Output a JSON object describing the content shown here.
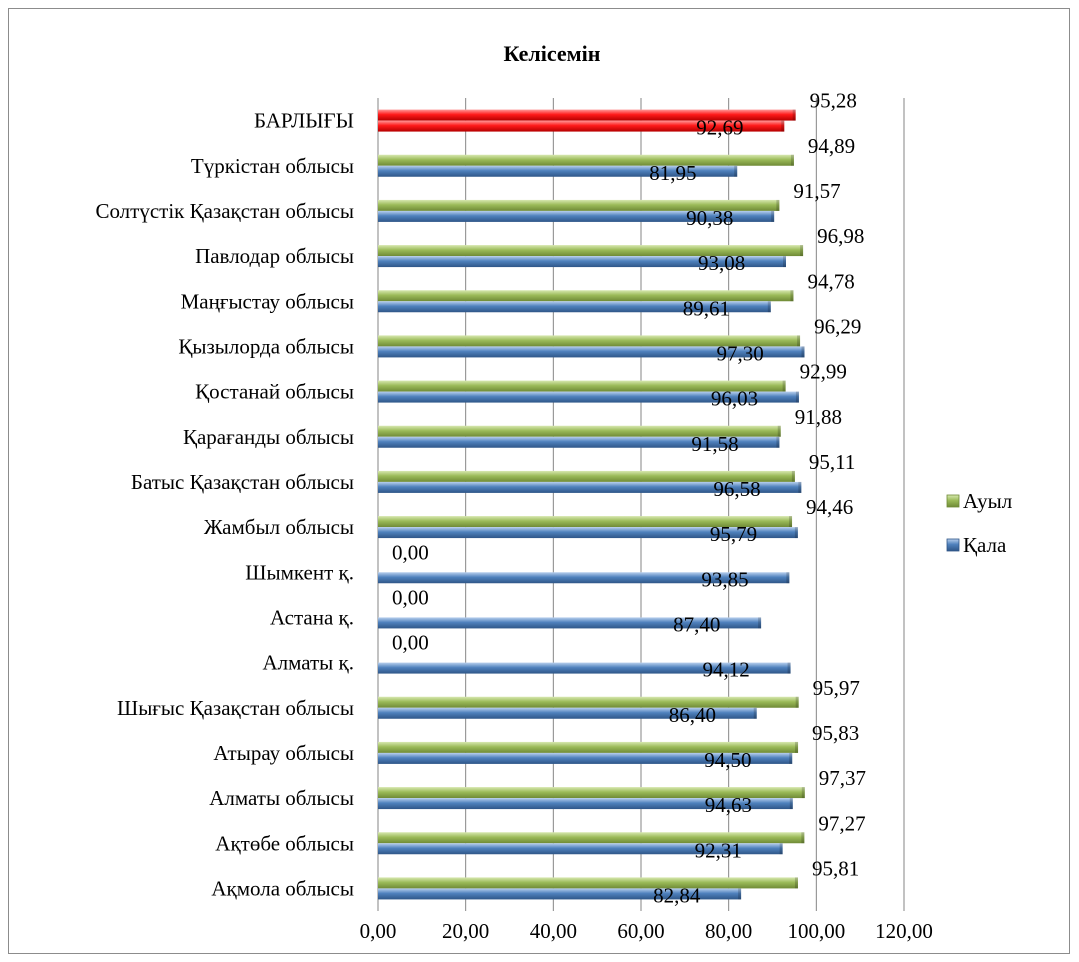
{
  "chart_data": {
    "type": "bar",
    "orientation": "horizontal",
    "title": "Келісемін",
    "categories": [
      "БАРЛЫҒЫ",
      "Түркістан облысы",
      "Солтүстік Қазақстан облысы",
      "Павлодар облысы",
      "Маңғыстау облысы",
      "Қызылорда облысы",
      "Қостанай облысы",
      "Қарағанды облысы",
      "Батыс Қазақстан облысы",
      "Жамбыл облысы",
      "Шымкент қ.",
      "Астана қ.",
      "Алматы қ.",
      "Шығыс Қазақстан облысы",
      "Атырау облысы",
      "Алматы облысы",
      "Ақтөбе облысы",
      "Ақмола облысы"
    ],
    "series": [
      {
        "name": "Ауыл",
        "color": "#9bbb59",
        "values": [
          95.28,
          94.89,
          91.57,
          96.98,
          94.78,
          96.29,
          92.99,
          91.88,
          95.11,
          94.46,
          0,
          0,
          0,
          95.97,
          95.83,
          97.37,
          97.27,
          95.81
        ],
        "labels": [
          "95,28",
          "94,89",
          "91,57",
          "96,98",
          "94,78",
          "96,29",
          "92,99",
          "91,88",
          "95,11",
          "94,46",
          "0,00",
          "0,00",
          "0,00",
          "95,97",
          "95,83",
          "97,37",
          "97,27",
          "95,81"
        ]
      },
      {
        "name": "Қала",
        "color": "#4f81bd",
        "values": [
          92.69,
          81.95,
          90.38,
          93.08,
          89.61,
          97.3,
          96.03,
          91.58,
          96.58,
          95.79,
          93.85,
          87.4,
          94.12,
          86.4,
          94.5,
          94.63,
          92.31,
          82.84
        ],
        "labels": [
          "92,69",
          "81,95",
          "90,38",
          "93,08",
          "89,61",
          "97,30",
          "96,03",
          "91,58",
          "96,58",
          "95,79",
          "93,85",
          "87,40",
          "94,12",
          "86,40",
          "94,50",
          "94,63",
          "92,31",
          "82,84"
        ]
      }
    ],
    "highlight_category": "БАРЛЫҒЫ",
    "highlight_color": "#ff0000",
    "xlim": [
      0,
      120
    ],
    "xticks": [
      "0,00",
      "20,00",
      "40,00",
      "60,00",
      "80,00",
      "100,00",
      "120,00"
    ],
    "grid": true,
    "legend": {
      "position": "right",
      "entries": [
        "Ауыл",
        "Қала"
      ]
    }
  }
}
